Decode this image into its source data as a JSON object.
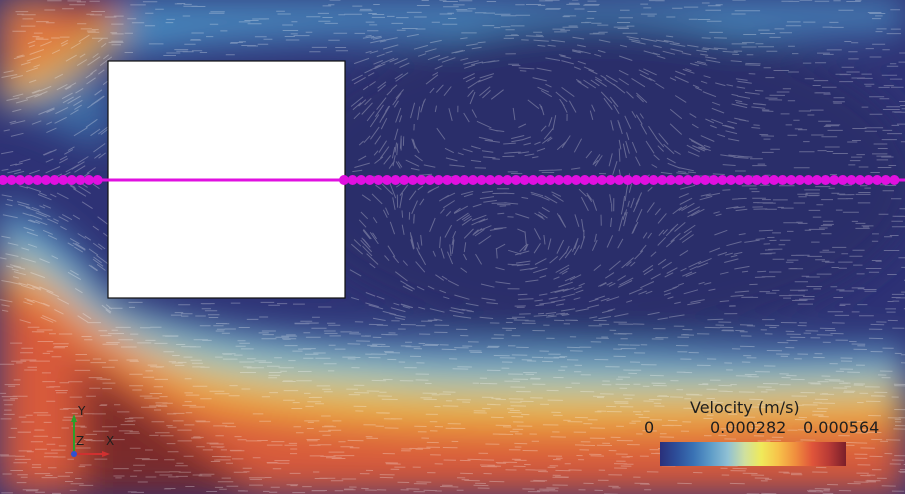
{
  "legend": {
    "title": "Velocity (m/s)",
    "tick_min": "0",
    "tick_mid": "0.000282",
    "tick_max": "0.000564",
    "colormap": [
      "#2a2f7a",
      "#2d4f9a",
      "#3a73b5",
      "#5e9cc8",
      "#8fc0d4",
      "#cfe0a0",
      "#f0ea5a",
      "#f7c24a",
      "#f08f3e",
      "#e0553a",
      "#b83a36",
      "#7a1f2a"
    ]
  },
  "axes": {
    "x": "X",
    "y": "Y",
    "z": "Z"
  },
  "colors": {
    "obstacle": "#ffffff",
    "probe_points": "#e010e0",
    "slow_flow": "#2c2f6f",
    "fast_flow": "#c84a3a"
  }
}
